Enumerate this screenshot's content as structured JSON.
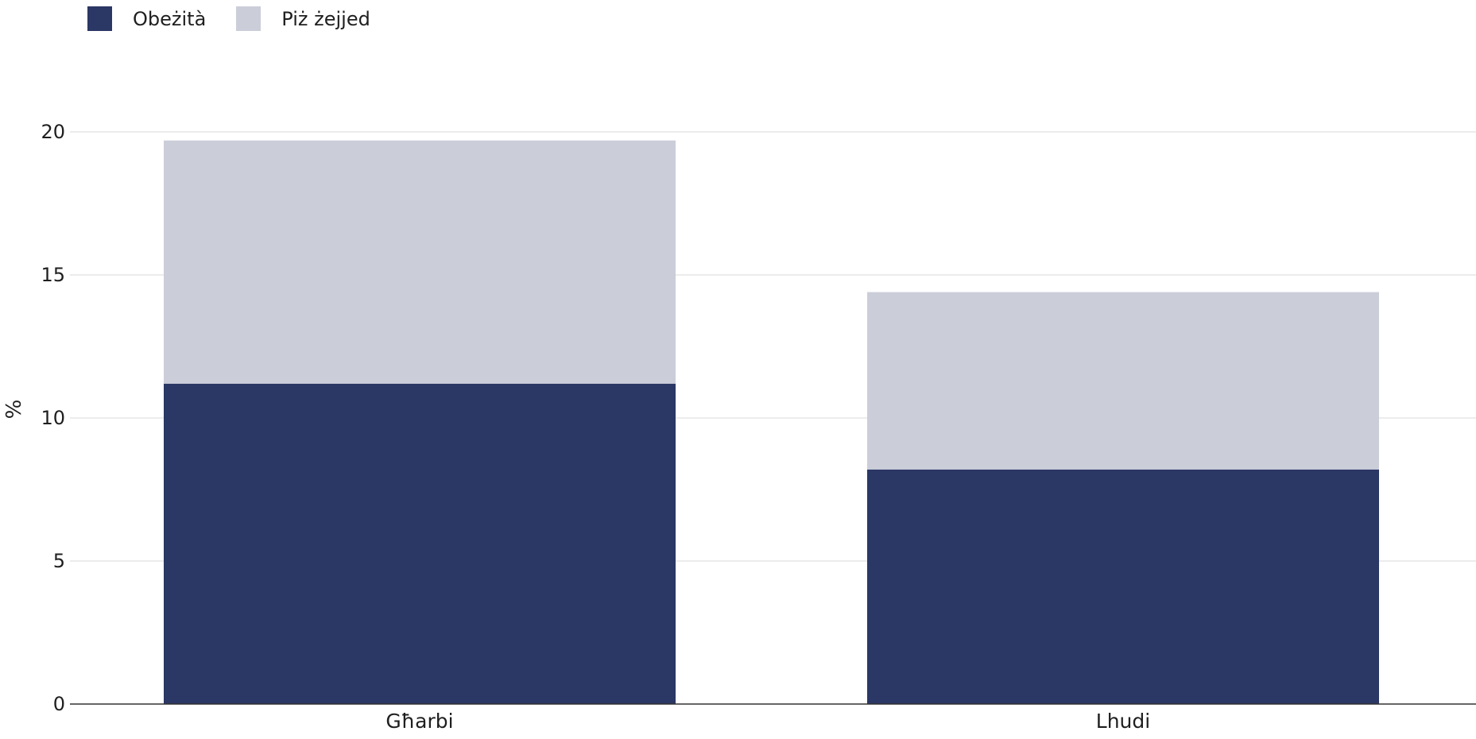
{
  "chart_data": {
    "type": "bar",
    "stacked": true,
    "categories": [
      "Għarbi",
      "Lhudi"
    ],
    "series": [
      {
        "name": "Obeżità",
        "values": [
          11.2,
          8.2
        ],
        "color": "#2b3764"
      },
      {
        "name": "Piż żejjed",
        "values": [
          8.5,
          6.2
        ],
        "color": "#cbcdd9"
      }
    ],
    "ylabel": "%",
    "xlabel": "",
    "ylim": [
      0,
      20
    ],
    "yticks": [
      0,
      5,
      10,
      15,
      20
    ],
    "grid": true,
    "legend_position": "top-left"
  }
}
